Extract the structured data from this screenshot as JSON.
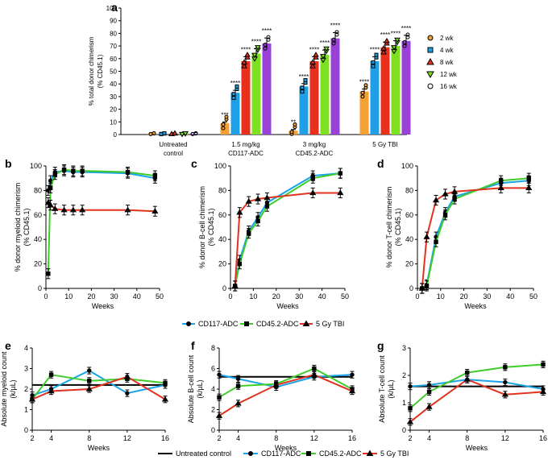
{
  "colors": {
    "wk2": "#f5a032",
    "wk4": "#1e9fe6",
    "wk8": "#e8301c",
    "wk12": "#7ee01e",
    "wk16": "#9a42d8",
    "ctrl": "#000000",
    "cd117": "#1aa3e8",
    "cd45": "#3fcc2a",
    "tbi": "#e0321e"
  },
  "chart_data": [
    {
      "panel": "a",
      "type": "bar",
      "ylabel": "% total donor chimerism",
      "ylabel2": "(% CD45.1)",
      "ylim": [
        0,
        100
      ],
      "yticks": [
        "0",
        "10",
        "20",
        "30",
        "40",
        "50",
        "60",
        "70",
        "80",
        "90",
        "100"
      ],
      "categories": [
        {
          "line1": "Untreated",
          "line2": "control"
        },
        {
          "line1": "1.5 mg/kg",
          "line2": "CD117-ADC"
        },
        {
          "line1": "3 mg/kg",
          "line2": "CD45.2-ADC"
        },
        {
          "line1": "5 Gy TBI",
          "line2": ""
        }
      ],
      "series": [
        {
          "name": "2 wk",
          "color_key": "wk2",
          "marker": "circle",
          "values": [
            0.5,
            9,
            3,
            34
          ],
          "sig": [
            "",
            "***",
            "**",
            "****"
          ]
        },
        {
          "name": "4 wk",
          "color_key": "wk4",
          "marker": "square",
          "values": [
            0.5,
            33,
            38,
            58
          ],
          "sig": [
            "",
            "****",
            "****",
            "****"
          ]
        },
        {
          "name": "8 wk",
          "color_key": "wk8",
          "marker": "triangle-up",
          "values": [
            0.5,
            58,
            58,
            69
          ],
          "sig": [
            "",
            "****",
            "****",
            "****"
          ]
        },
        {
          "name": "12 wk",
          "color_key": "wk12",
          "marker": "triangle-down",
          "values": [
            0.5,
            64,
            63,
            70
          ],
          "sig": [
            "",
            "****",
            "****",
            "****"
          ]
        },
        {
          "name": "16 wk",
          "color_key": "wk16",
          "marker": "circle-open",
          "values": [
            0.5,
            72,
            76,
            74
          ],
          "sig": [
            "",
            "****",
            "****",
            "****"
          ]
        }
      ]
    },
    {
      "panel": "b",
      "type": "line",
      "ylabel": "% donor myeloid chimerism",
      "ylabel2": "(% CD45.1)",
      "xlabel": "Weeks",
      "xlim": [
        0,
        50
      ],
      "ylim": [
        0,
        100
      ],
      "xticks": [
        "0",
        "10",
        "20",
        "30",
        "40",
        "50"
      ],
      "yticks": [
        "0",
        "20",
        "40",
        "60",
        "80",
        "100"
      ],
      "series": [
        {
          "name": "CD117-ADC",
          "color_key": "cd117",
          "x": [
            1,
            2,
            4,
            8,
            12,
            16,
            36,
            48
          ],
          "y": [
            80,
            88,
            95,
            96,
            95,
            95,
            94,
            90
          ]
        },
        {
          "name": "CD45.2-ADC",
          "color_key": "cd45",
          "x": [
            1,
            2,
            4,
            8,
            12,
            16,
            36,
            48
          ],
          "y": [
            12,
            82,
            93,
            97,
            96,
            96,
            95,
            92
          ]
        },
        {
          "name": "5 Gy TBI",
          "color_key": "tbi",
          "x": [
            1,
            2,
            4,
            8,
            12,
            16,
            36,
            48
          ],
          "y": [
            70,
            68,
            65,
            64,
            64,
            64,
            64,
            63
          ]
        }
      ]
    },
    {
      "panel": "c",
      "type": "line",
      "ylabel": "% donor B-cell chimerism",
      "ylabel2": "(% CD45.1)",
      "xlabel": "Weeks",
      "xlim": [
        0,
        50
      ],
      "ylim": [
        0,
        100
      ],
      "xticks": [
        "0",
        "10",
        "20",
        "30",
        "40",
        "50"
      ],
      "yticks": [
        "0",
        "20",
        "40",
        "60",
        "80",
        "100"
      ],
      "series": [
        {
          "name": "CD117-ADC",
          "color_key": "cd117",
          "x": [
            2,
            4,
            8,
            12,
            16,
            36,
            48
          ],
          "y": [
            2,
            23,
            47,
            58,
            70,
            92,
            94
          ]
        },
        {
          "name": "CD45.2-ADC",
          "color_key": "cd45",
          "x": [
            2,
            4,
            8,
            12,
            16,
            36,
            48
          ],
          "y": [
            2,
            20,
            45,
            55,
            67,
            90,
            94
          ]
        },
        {
          "name": "5 Gy TBI",
          "color_key": "tbi",
          "x": [
            2,
            4,
            8,
            12,
            16,
            36,
            48
          ],
          "y": [
            2,
            62,
            71,
            73,
            74,
            78,
            78
          ]
        }
      ]
    },
    {
      "panel": "d",
      "type": "line",
      "ylabel": "% donor T-cell chimerism",
      "ylabel2": "(% CD45.1)",
      "xlabel": "Weeks",
      "xlim": [
        0,
        50
      ],
      "ylim": [
        0,
        100
      ],
      "xticks": [
        "0",
        "10",
        "20",
        "30",
        "40",
        "50"
      ],
      "yticks": [
        "0",
        "20",
        "40",
        "60",
        "80",
        "100"
      ],
      "series": [
        {
          "name": "CD117-ADC",
          "color_key": "cd117",
          "x": [
            2,
            4,
            8,
            12,
            16,
            36,
            48
          ],
          "y": [
            0,
            3,
            42,
            62,
            75,
            86,
            88
          ]
        },
        {
          "name": "CD45.2-ADC",
          "color_key": "cd45",
          "x": [
            2,
            4,
            8,
            12,
            16,
            36,
            48
          ],
          "y": [
            0,
            2,
            38,
            60,
            73,
            88,
            90
          ]
        },
        {
          "name": "5 Gy TBI",
          "color_key": "tbi",
          "x": [
            2,
            4,
            8,
            12,
            16,
            36,
            48
          ],
          "y": [
            0,
            42,
            72,
            77,
            79,
            82,
            82
          ]
        }
      ]
    },
    {
      "panel": "e",
      "type": "line",
      "ylabel": "Absolute myeloid count",
      "ylabel2": "(k/µL)",
      "xlabel": "Weeks",
      "xlim": [
        2,
        16
      ],
      "ylim": [
        0,
        4
      ],
      "xticks": [
        "2",
        "4",
        "8",
        "12",
        "16"
      ],
      "yticks": [
        "0",
        "1",
        "2",
        "3",
        "4"
      ],
      "series": [
        {
          "name": "Untreated control",
          "color_key": "ctrl",
          "x": [
            2,
            16
          ],
          "y": [
            2.2,
            2.2
          ]
        },
        {
          "name": "CD117-ADC",
          "color_key": "cd117",
          "x": [
            2,
            4,
            8,
            12,
            16
          ],
          "y": [
            1.7,
            2.0,
            2.9,
            1.8,
            2.2
          ]
        },
        {
          "name": "CD45.2-ADC",
          "color_key": "cd45",
          "x": [
            2,
            4,
            8,
            12,
            16
          ],
          "y": [
            1.5,
            2.7,
            2.4,
            2.5,
            2.3
          ]
        },
        {
          "name": "5 Gy TBI",
          "color_key": "tbi",
          "x": [
            2,
            4,
            8,
            12,
            16
          ],
          "y": [
            1.5,
            1.9,
            2.0,
            2.6,
            1.5
          ]
        }
      ]
    },
    {
      "panel": "f",
      "type": "line",
      "ylabel": "Absolute B-cell count",
      "ylabel2": "(k/µL)",
      "xlabel": "Weeks",
      "xlim": [
        2,
        16
      ],
      "ylim": [
        0,
        8
      ],
      "xticks": [
        "2",
        "4",
        "8",
        "12",
        "16"
      ],
      "yticks": [
        "0",
        "2",
        "4",
        "6",
        "8"
      ],
      "series": [
        {
          "name": "Untreated control",
          "color_key": "ctrl",
          "x": [
            2,
            16
          ],
          "y": [
            5.2,
            5.2
          ]
        },
        {
          "name": "CD117-ADC",
          "color_key": "cd117",
          "x": [
            2,
            4,
            8,
            12,
            16
          ],
          "y": [
            5.4,
            5.0,
            4.2,
            5.2,
            5.4
          ]
        },
        {
          "name": "CD45.2-ADC",
          "color_key": "cd45",
          "x": [
            2,
            4,
            8,
            12,
            16
          ],
          "y": [
            3.2,
            4.3,
            4.5,
            6.0,
            4.0
          ]
        },
        {
          "name": "5 Gy TBI",
          "color_key": "tbi",
          "x": [
            2,
            4,
            8,
            12,
            16
          ],
          "y": [
            1.4,
            2.6,
            4.4,
            5.4,
            3.8
          ]
        }
      ]
    },
    {
      "panel": "g",
      "type": "line",
      "ylabel": "Absolute T-cell count",
      "ylabel2": "(k/µL)",
      "xlabel": "Weeks",
      "xlim": [
        2,
        16
      ],
      "ylim": [
        0,
        3
      ],
      "xticks": [
        "2",
        "4",
        "8",
        "12",
        "16"
      ],
      "yticks": [
        "0",
        "1",
        "2",
        "3"
      ],
      "series": [
        {
          "name": "Untreated control",
          "color_key": "ctrl",
          "x": [
            2,
            16
          ],
          "y": [
            1.6,
            1.6
          ]
        },
        {
          "name": "CD117-ADC",
          "color_key": "cd117",
          "x": [
            2,
            4,
            8,
            12,
            16
          ],
          "y": [
            1.6,
            1.65,
            1.85,
            1.75,
            1.5
          ]
        },
        {
          "name": "CD45.2-ADC",
          "color_key": "cd45",
          "x": [
            2,
            4,
            8,
            12,
            16
          ],
          "y": [
            0.8,
            1.4,
            2.1,
            2.3,
            2.4
          ]
        },
        {
          "name": "5 Gy TBI",
          "color_key": "tbi",
          "x": [
            2,
            4,
            8,
            12,
            16
          ],
          "y": [
            0.3,
            0.85,
            1.85,
            1.3,
            1.4
          ]
        }
      ]
    }
  ],
  "legend_mid": [
    {
      "name": "CD117-ADC",
      "color_key": "cd117",
      "marker": "circle"
    },
    {
      "name": "CD45.2-ADC",
      "color_key": "cd45",
      "marker": "square"
    },
    {
      "name": "5 Gy TBI",
      "color_key": "tbi",
      "marker": "triangle-up"
    }
  ],
  "legend_bottom": [
    {
      "name": "Untreated control",
      "color_key": "ctrl",
      "marker": "none"
    },
    {
      "name": "CD117-ADC",
      "color_key": "cd117",
      "marker": "circle"
    },
    {
      "name": "CD45.2-ADC",
      "color_key": "cd45",
      "marker": "square"
    },
    {
      "name": "5 Gy TBI",
      "color_key": "tbi",
      "marker": "triangle-up"
    }
  ]
}
